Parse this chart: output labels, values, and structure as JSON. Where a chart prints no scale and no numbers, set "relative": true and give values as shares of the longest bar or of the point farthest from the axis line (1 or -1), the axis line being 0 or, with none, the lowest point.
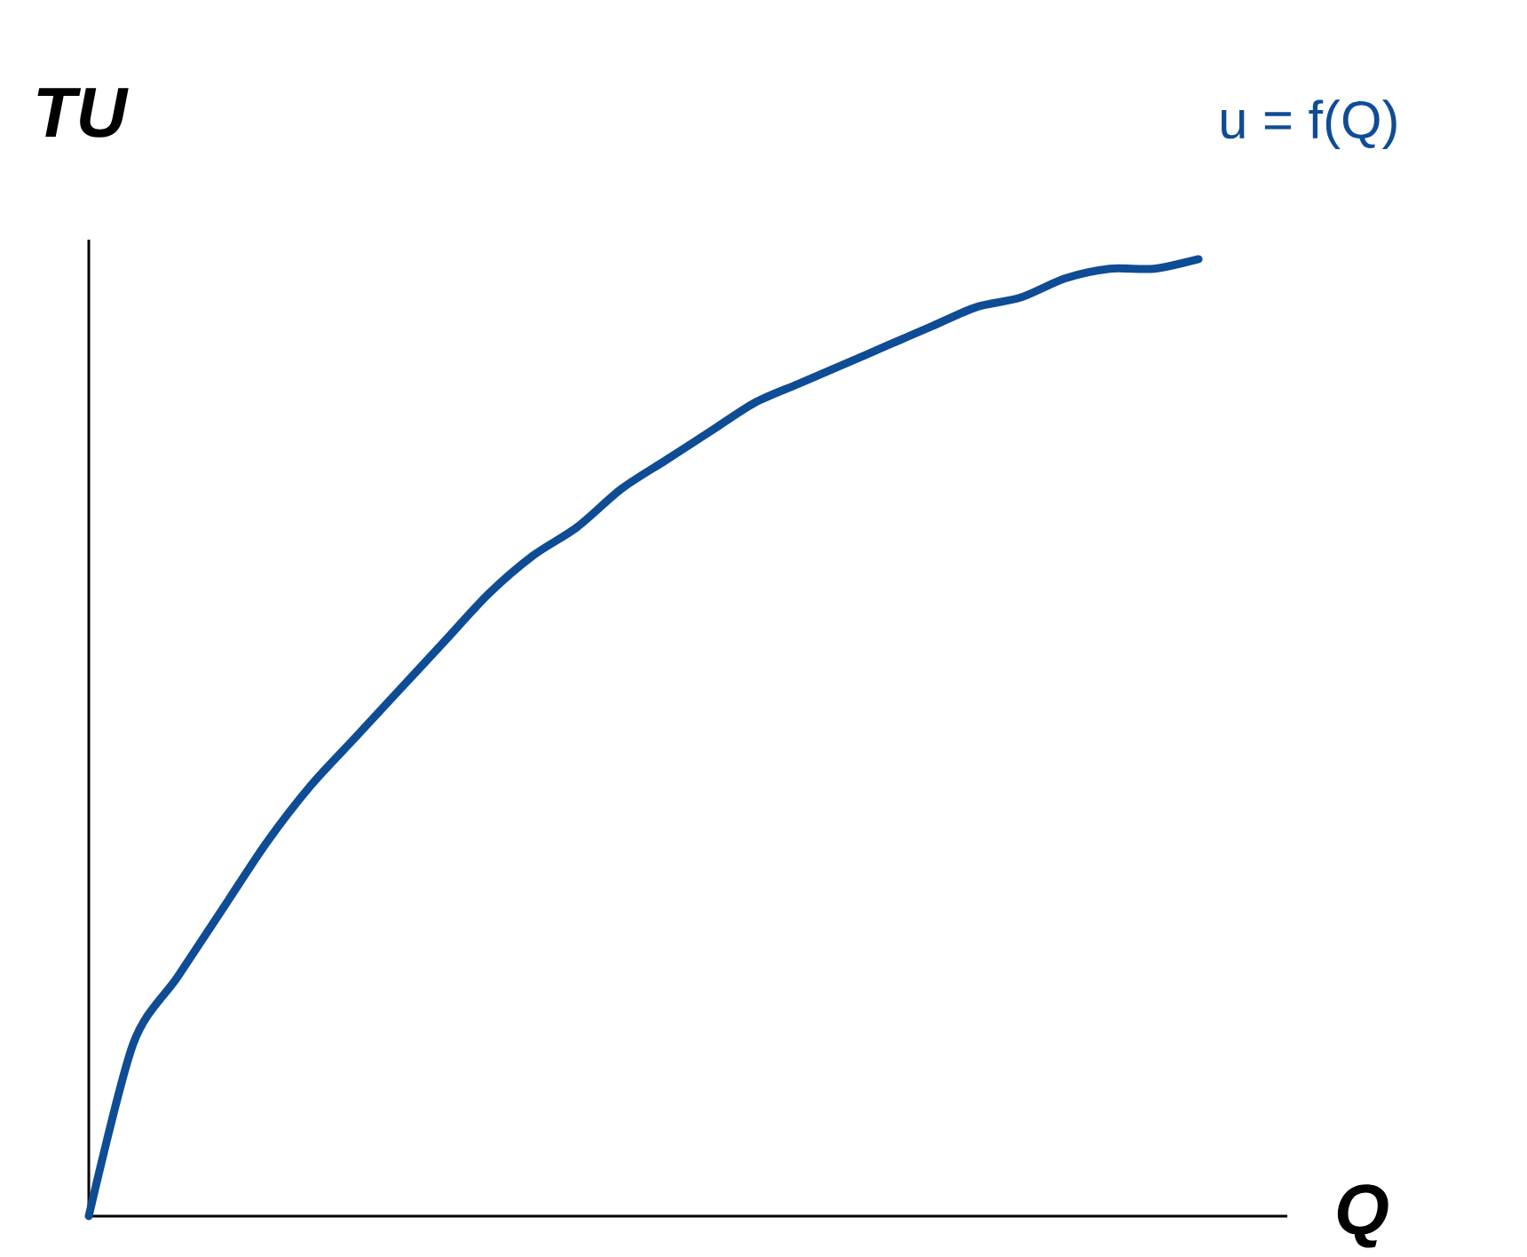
{
  "chart_data": {
    "type": "line",
    "relative": true,
    "xlabel": "Q",
    "ylabel": "TU",
    "annotations": [
      "u = f(Q)"
    ],
    "categories": [
      null,
      null,
      null,
      null,
      null,
      null,
      null,
      null,
      null,
      null,
      null,
      null,
      null,
      null,
      null,
      null,
      null,
      null,
      null,
      null,
      null,
      null,
      null,
      null,
      null,
      null
    ],
    "values": [
      0,
      0.18,
      0.25,
      0.32,
      0.39,
      0.45,
      0.5,
      0.55,
      0.6,
      0.65,
      0.69,
      0.72,
      0.76,
      0.79,
      0.82,
      0.85,
      0.87,
      0.89,
      0.91,
      0.93,
      0.95,
      0.96,
      0.98,
      0.99,
      0.99,
      1
    ],
    "color": "#0f4c96"
  }
}
